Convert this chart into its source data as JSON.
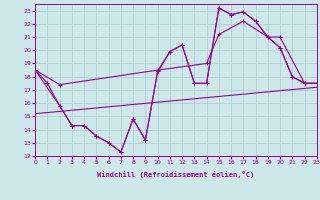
{
  "xlabel": "Windchill (Refroidissement éolien,°C)",
  "bg_color": "#cce8e8",
  "line_color": "#990099",
  "grid_color": "#aacccc",
  "xlim": [
    0,
    23
  ],
  "ylim": [
    12,
    23.5
  ],
  "xticks": [
    0,
    1,
    2,
    3,
    4,
    5,
    6,
    7,
    8,
    9,
    10,
    11,
    12,
    13,
    14,
    15,
    16,
    17,
    18,
    19,
    20,
    21,
    22,
    23
  ],
  "yticks": [
    12,
    13,
    14,
    15,
    16,
    17,
    18,
    19,
    20,
    21,
    22,
    23
  ],
  "line1_x": [
    0,
    1,
    2,
    3,
    4,
    5,
    6,
    7,
    8,
    9,
    10,
    11,
    12,
    13,
    14,
    15,
    16,
    17,
    18,
    19,
    20,
    21,
    22,
    23
  ],
  "line1_y": [
    18.5,
    17.5,
    15.8,
    14.3,
    14.3,
    13.5,
    13.0,
    12.3,
    14.8,
    13.2,
    18.4,
    19.9,
    20.4,
    17.5,
    17.5,
    23.2,
    22.7,
    22.9,
    22.2,
    21.0,
    20.2,
    18.0,
    17.5,
    17.5
  ],
  "line2_x": [
    0,
    2,
    3,
    4,
    5,
    6,
    7,
    8,
    9,
    10,
    11,
    12,
    13,
    14,
    15,
    16,
    17,
    18,
    19,
    20,
    21,
    22,
    23
  ],
  "line2_y": [
    18.5,
    15.8,
    14.3,
    14.3,
    13.5,
    13.0,
    12.3,
    14.8,
    13.2,
    18.4,
    19.9,
    20.4,
    17.5,
    17.5,
    23.2,
    22.7,
    22.9,
    22.2,
    21.0,
    20.2,
    18.0,
    17.5,
    17.5
  ],
  "line3_x": [
    0,
    2,
    10,
    14,
    15,
    17,
    19,
    20,
    22,
    23
  ],
  "line3_y": [
    18.5,
    17.4,
    18.5,
    19.0,
    21.2,
    22.2,
    21.0,
    21.0,
    17.5,
    17.5
  ],
  "line4_x": [
    0,
    23
  ],
  "line4_y": [
    15.2,
    17.2
  ]
}
